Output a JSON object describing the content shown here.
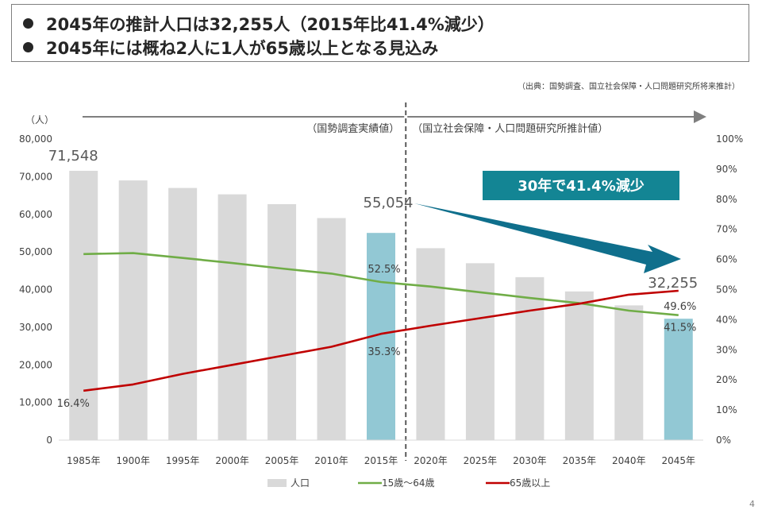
{
  "headline": {
    "line1": "2045年の推計人口は32,255人（2015年比41.4%減少）",
    "line2": "2045年には概ね2人に1人が65歳以上となる見込み"
  },
  "source": "（出典：国勢調査、国立社会保障・人口問題研究所将来推計）",
  "page_number": "4",
  "colors": {
    "bar_default": "#d9d9d9",
    "bar_highlight": "#92c8d4",
    "line_working_age": "#70ad47",
    "line_elderly": "#c00000",
    "callout_bg": "#138594",
    "arrow": "#0f6f8c",
    "period_arrow": "#7f7f7f"
  },
  "chart_data": {
    "type": "bar",
    "categories": [
      "1985年",
      "1900年",
      "1995年",
      "2000年",
      "2005年",
      "2010年",
      "2015年",
      "2020年",
      "2025年",
      "2030年",
      "2035年",
      "2040年",
      "2045年"
    ],
    "highlight_categories": [
      "2015年",
      "2045年"
    ],
    "y_axis_left": {
      "unit_label": "（人）",
      "min": 0,
      "max": 80000,
      "ticks": [
        "0",
        "10,000",
        "20,000",
        "30,000",
        "40,000",
        "50,000",
        "60,000",
        "70,000",
        "80,000"
      ]
    },
    "y_axis_right": {
      "min": 0,
      "max": 100,
      "ticks": [
        "0%",
        "10%",
        "20%",
        "30%",
        "40%",
        "50%",
        "60%",
        "70%",
        "80%",
        "90%",
        "100%"
      ]
    },
    "series": [
      {
        "name": "人口",
        "type": "bar",
        "axis": "left",
        "values": [
          71548,
          69000,
          67000,
          65300,
          62700,
          59000,
          55054,
          51000,
          47000,
          43300,
          39500,
          35800,
          32255
        ]
      },
      {
        "name": "15歳～64歳",
        "type": "line",
        "axis": "right",
        "values": [
          61.8,
          62.1,
          60.5,
          58.8,
          57.0,
          55.3,
          52.5,
          51.0,
          49.1,
          47.2,
          45.5,
          43.0,
          41.5
        ]
      },
      {
        "name": "65歳以上",
        "type": "line",
        "axis": "right",
        "values": [
          16.4,
          18.5,
          22.0,
          25.0,
          28.0,
          31.0,
          35.3,
          38.0,
          40.5,
          43.0,
          45.3,
          48.3,
          49.6
        ]
      }
    ],
    "data_labels": {
      "bars": [
        {
          "index": 0,
          "text": "71,548"
        },
        {
          "index": 6,
          "text": "55,054"
        },
        {
          "index": 12,
          "text": "32,255"
        }
      ],
      "working_age": [
        {
          "index": 6,
          "text": "52.5%"
        },
        {
          "index": 12,
          "text": "41.5%"
        }
      ],
      "elderly": [
        {
          "index": 0,
          "text": "16.4%"
        },
        {
          "index": 6,
          "text": "35.3%"
        },
        {
          "index": 12,
          "text": "49.6%"
        }
      ]
    },
    "periods": {
      "actual": "（国勢調査実績値）",
      "projected": "（国立社会保障・人口問題研究所推計値）"
    },
    "callout": "30年で41.4%減少",
    "legend_position": "bottom",
    "grid": false
  }
}
